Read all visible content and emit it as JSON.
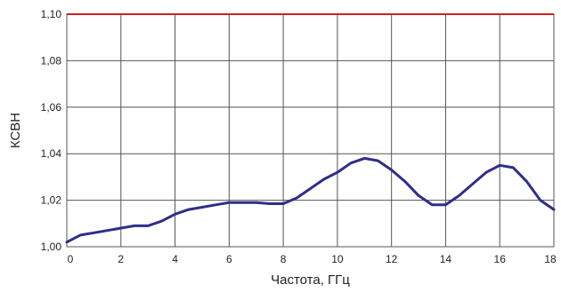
{
  "chart_data": {
    "type": "line",
    "title": "",
    "xlabel": "Частота, ГГц",
    "ylabel": "КСВН",
    "xlim": [
      0,
      18
    ],
    "ylim": [
      1.0,
      1.1
    ],
    "x_ticks": [
      0,
      2,
      4,
      6,
      8,
      10,
      12,
      14,
      16,
      18
    ],
    "x_tick_labels": [
      "0",
      "2",
      "4",
      "6",
      "8",
      "10",
      "12",
      "14",
      "16",
      "18"
    ],
    "y_ticks": [
      1.0,
      1.02,
      1.04,
      1.06,
      1.08,
      1.1
    ],
    "y_tick_labels": [
      "1,00",
      "1,02",
      "1,04",
      "1,06",
      "1,08",
      "1,10"
    ],
    "grid": true,
    "limit_line": {
      "y": 1.1,
      "color": "#cc2222"
    },
    "series": [
      {
        "color": "#2e2e8a",
        "x": [
          0,
          0.5,
          1,
          1.5,
          2,
          2.5,
          3,
          3.5,
          4,
          4.5,
          5,
          5.5,
          6,
          6.5,
          7,
          7.5,
          8,
          8.5,
          9,
          9.5,
          10,
          10.5,
          11,
          11.5,
          12,
          12.5,
          13,
          13.5,
          14,
          14.5,
          15,
          15.5,
          16,
          16.5,
          17,
          17.5,
          18
        ],
        "y": [
          1.002,
          1.005,
          1.006,
          1.007,
          1.008,
          1.009,
          1.009,
          1.011,
          1.014,
          1.016,
          1.017,
          1.018,
          1.019,
          1.019,
          1.019,
          1.0185,
          1.0185,
          1.021,
          1.025,
          1.029,
          1.032,
          1.036,
          1.038,
          1.037,
          1.033,
          1.028,
          1.022,
          1.018,
          1.018,
          1.022,
          1.027,
          1.032,
          1.035,
          1.034,
          1.028,
          1.02,
          1.016
        ]
      }
    ]
  }
}
